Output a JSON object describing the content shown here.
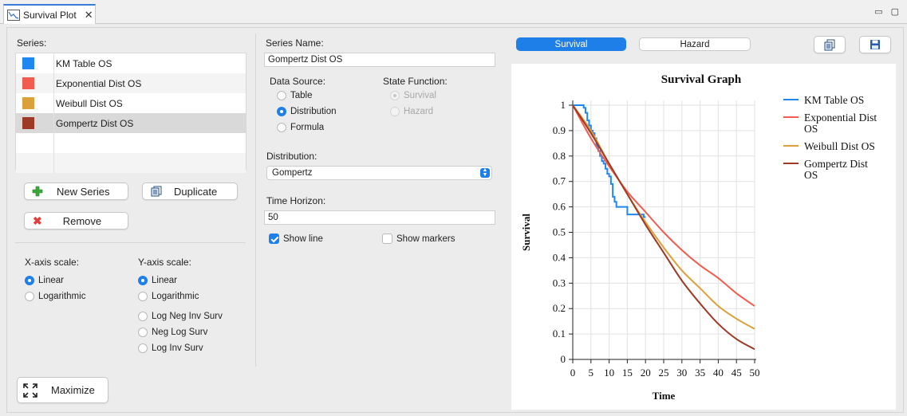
{
  "tab": {
    "title": "Survival Plot"
  },
  "series_panel": {
    "label": "Series:",
    "items": [
      {
        "name": "KM Table OS",
        "color": "#1f87f0"
      },
      {
        "name": "Exponential Dist OS",
        "color": "#f25c4f"
      },
      {
        "name": "Weibull Dist OS",
        "color": "#dca03a"
      },
      {
        "name": "Gompertz Dist OS",
        "color": "#9c3a26"
      }
    ],
    "new_series_label": "New Series",
    "duplicate_label": "Duplicate",
    "remove_label": "Remove"
  },
  "scales": {
    "x_label": "X-axis scale:",
    "x_options": [
      "Linear",
      "Logarithmic"
    ],
    "x_selected": "Linear",
    "y_label": "Y-axis scale:",
    "y_options": [
      "Linear",
      "Logarithmic",
      "Log Neg Inv Surv",
      "Neg Log Surv",
      "Log Inv Surv"
    ],
    "y_selected": "Linear"
  },
  "maximize_label": "Maximize",
  "editor": {
    "series_name_label": "Series Name:",
    "series_name_value": "Gompertz Dist OS",
    "data_source_label": "Data Source:",
    "data_source_options": [
      "Table",
      "Distribution",
      "Formula"
    ],
    "data_source_selected": "Distribution",
    "state_function_label": "State Function:",
    "state_function_options": [
      "Survival",
      "Hazard"
    ],
    "distribution_label": "Distribution:",
    "distribution_value": "Gompertz",
    "time_horizon_label": "Time Horizon:",
    "time_horizon_value": "50",
    "show_line_label": "Show line",
    "show_line_checked": true,
    "show_markers_label": "Show markers",
    "show_markers_checked": false
  },
  "view_toggle": {
    "survival_label": "Survival",
    "hazard_label": "Hazard",
    "selected": "Survival"
  },
  "chart_data": {
    "type": "line",
    "title": "Survival Graph",
    "xlabel": "Time",
    "ylabel": "Survival",
    "xlim": [
      0,
      50
    ],
    "ylim": [
      0,
      1
    ],
    "xticks": [
      0,
      5,
      10,
      15,
      20,
      25,
      30,
      35,
      40,
      45,
      50
    ],
    "yticks": [
      0,
      0.1,
      0.2,
      0.3,
      0.4,
      0.5,
      0.6,
      0.7,
      0.8,
      0.9,
      1
    ],
    "grid": true,
    "legend_position": "right",
    "series": [
      {
        "name": "KM Table OS",
        "color": "#1f87f0",
        "step": true,
        "x": [
          0,
          2.5,
          3,
          3.5,
          4,
          4.5,
          5,
          5.5,
          6,
          6.5,
          7,
          7.5,
          8,
          8.5,
          9,
          9.5,
          10,
          10.5,
          11,
          11.5,
          12,
          13,
          14,
          15,
          16,
          17,
          18,
          19,
          19.5,
          20
        ],
        "y": [
          1,
          1,
          0.99,
          0.97,
          0.94,
          0.92,
          0.9,
          0.89,
          0.87,
          0.84,
          0.82,
          0.8,
          0.78,
          0.77,
          0.75,
          0.73,
          0.72,
          0.69,
          0.64,
          0.62,
          0.6,
          0.6,
          0.6,
          0.57,
          0.57,
          0.57,
          0.57,
          0.57,
          0.56,
          0.56
        ]
      },
      {
        "name": "Exponential Dist OS",
        "color": "#f25c4f",
        "x": [
          0,
          5,
          10,
          15,
          20,
          25,
          30,
          35,
          40,
          45,
          50
        ],
        "y": [
          1,
          0.87,
          0.76,
          0.66,
          0.58,
          0.5,
          0.43,
          0.37,
          0.32,
          0.26,
          0.21
        ]
      },
      {
        "name": "Weibull Dist OS",
        "color": "#dca03a",
        "x": [
          0,
          5,
          10,
          15,
          20,
          25,
          30,
          35,
          40,
          45,
          50
        ],
        "y": [
          1,
          0.9,
          0.77,
          0.65,
          0.54,
          0.44,
          0.35,
          0.28,
          0.21,
          0.16,
          0.12
        ]
      },
      {
        "name": "Gompertz Dist OS",
        "color": "#9c3a26",
        "x": [
          0,
          5,
          10,
          15,
          20,
          25,
          30,
          35,
          40,
          45,
          50
        ],
        "y": [
          1,
          0.89,
          0.77,
          0.65,
          0.53,
          0.42,
          0.31,
          0.22,
          0.14,
          0.08,
          0.04
        ]
      }
    ]
  }
}
